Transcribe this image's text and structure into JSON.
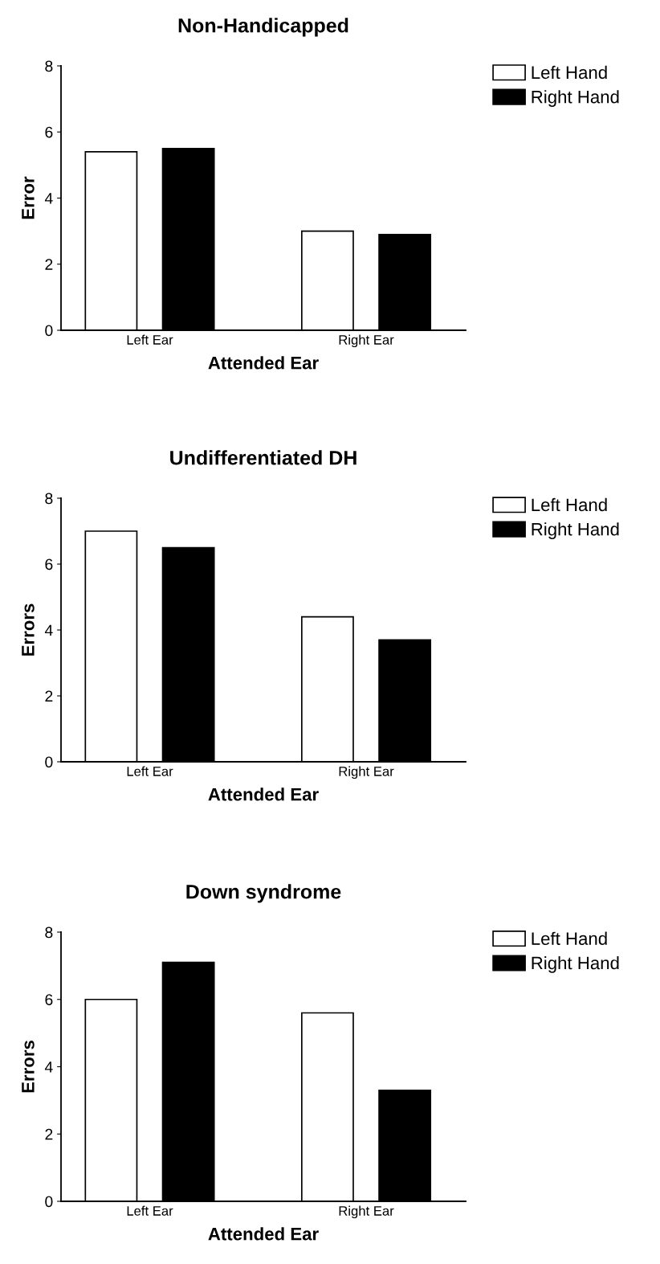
{
  "chart_data": [
    {
      "type": "bar",
      "title": "Non-Handicapped",
      "xlabel": "Attended Ear",
      "ylabel": "Error",
      "categories": [
        "Left Ear",
        "Right Ear"
      ],
      "ylim": [
        0,
        8
      ],
      "yticks": [
        0,
        2,
        4,
        6,
        8
      ],
      "legend": "right",
      "grid": false,
      "series": [
        {
          "name": "Left Hand",
          "color": "#ffffff",
          "values": [
            5.4,
            3.0
          ]
        },
        {
          "name": "Right Hand",
          "color": "#000000",
          "values": [
            5.5,
            2.9
          ]
        }
      ]
    },
    {
      "type": "bar",
      "title": "Undifferentiated DH",
      "xlabel": "Attended Ear",
      "ylabel": "Errors",
      "categories": [
        "Left Ear",
        "Right Ear"
      ],
      "ylim": [
        0,
        8
      ],
      "yticks": [
        0,
        2,
        4,
        6,
        8
      ],
      "legend": "right",
      "grid": false,
      "series": [
        {
          "name": "Left Hand",
          "color": "#ffffff",
          "values": [
            7.0,
            4.4
          ]
        },
        {
          "name": "Right Hand",
          "color": "#000000",
          "values": [
            6.5,
            3.7
          ]
        }
      ]
    },
    {
      "type": "bar",
      "title": "Down syndrome",
      "xlabel": "Attended Ear",
      "ylabel": "Errors",
      "categories": [
        "Left Ear",
        "Right Ear"
      ],
      "ylim": [
        0,
        8
      ],
      "yticks": [
        0,
        2,
        4,
        6,
        8
      ],
      "legend": "right",
      "grid": false,
      "series": [
        {
          "name": "Left Hand",
          "color": "#ffffff",
          "values": [
            6.0,
            5.6
          ]
        },
        {
          "name": "Right Hand",
          "color": "#000000",
          "values": [
            7.1,
            3.3
          ]
        }
      ]
    }
  ]
}
